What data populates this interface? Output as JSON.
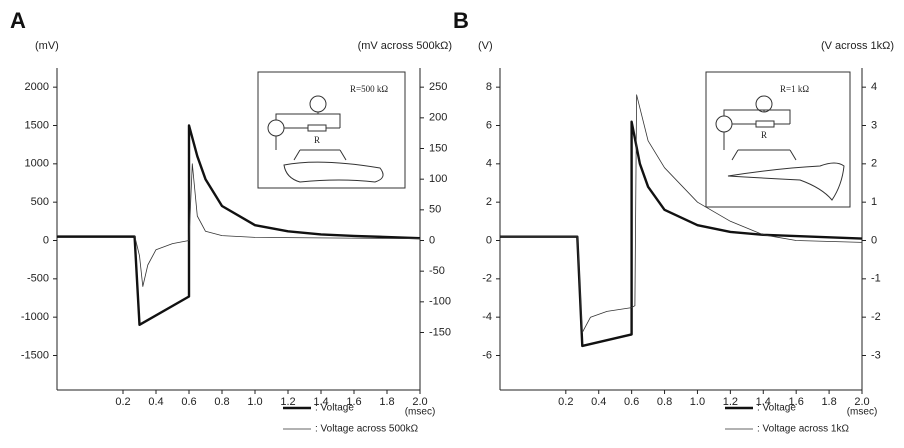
{
  "chart_data": [
    {
      "type": "line",
      "panel_label": "A",
      "y_label": "(mV)",
      "y2_label": "(mV across 500kΩ)",
      "x_label": "(msec)",
      "xlim": [
        -0.2,
        2.0
      ],
      "xticks": [
        0.2,
        0.4,
        0.6,
        0.8,
        {
          "value": 1,
          "label": "1.0"
        },
        1.2,
        1.4,
        1.6,
        1.8,
        {
          "value": 2,
          "label": "2.0"
        }
      ],
      "ylim": [
        -1950,
        2250
      ],
      "yticks": [
        2000,
        1500,
        1000,
        500,
        0,
        -500,
        -1000,
        -1500
      ],
      "y2lim": [
        -243.75,
        281.25
      ],
      "y2ticks": [
        250,
        200,
        150,
        100,
        50,
        0,
        -50,
        -100,
        -150
      ],
      "inset_labels": [
        "R=500 kΩ",
        "R"
      ],
      "series": [
        {
          "name": ": Voltage",
          "color": "#111111",
          "width": 2.4,
          "x": [
            -0.2,
            0.27,
            0.3,
            0.6,
            0.6,
            0.65,
            0.7,
            0.8,
            1.0,
            1.2,
            1.4,
            1.6,
            2.0
          ],
          "values": [
            50,
            50,
            -1100,
            -730,
            1500,
            1100,
            800,
            450,
            200,
            120,
            80,
            60,
            30
          ]
        },
        {
          "name": ": Voltage across 500kΩ",
          "color": "#333333",
          "width": 0.8,
          "axis": "y2",
          "x": [
            -0.2,
            0.27,
            0.3,
            0.32,
            0.35,
            0.4,
            0.5,
            0.6,
            0.62,
            0.65,
            0.7,
            0.8,
            1.0,
            2.0
          ],
          "values": [
            8,
            8,
            -25,
            -75,
            -40,
            -15,
            -5,
            0,
            125,
            40,
            15,
            8,
            5,
            3
          ]
        }
      ]
    },
    {
      "type": "line",
      "panel_label": "B",
      "y_label": "(V)",
      "y2_label": "(V across 1kΩ)",
      "x_label": "(msec)",
      "xlim": [
        -0.2,
        2.0
      ],
      "xticks": [
        0.2,
        0.4,
        0.6,
        0.8,
        {
          "value": 1,
          "label": "1.0"
        },
        1.2,
        1.4,
        1.6,
        1.8,
        {
          "value": 2,
          "label": "2.0"
        }
      ],
      "ylim": [
        -7.8,
        9
      ],
      "yticks": [
        8,
        6,
        4,
        2,
        0,
        -2,
        -4,
        -6
      ],
      "y2lim": [
        -3.9,
        4.5
      ],
      "y2ticks": [
        4,
        3,
        2,
        1,
        0,
        -1,
        -2,
        -3
      ],
      "inset_labels": [
        "R=1 kΩ",
        "R"
      ],
      "series": [
        {
          "name": ": Voltage",
          "color": "#111111",
          "width": 2.4,
          "x": [
            -0.2,
            0.27,
            0.3,
            0.6,
            0.6,
            0.65,
            0.7,
            0.8,
            1.0,
            1.2,
            1.4,
            2.0
          ],
          "values": [
            0.2,
            0.2,
            -5.5,
            -4.9,
            6.2,
            4,
            2.8,
            1.6,
            0.8,
            0.45,
            0.3,
            0.1
          ]
        },
        {
          "name": ": Voltage across 1kΩ",
          "color": "#333333",
          "width": 0.8,
          "axis": "y2",
          "x": [
            -0.2,
            0.27,
            0.3,
            0.35,
            0.45,
            0.6,
            0.62,
            0.63,
            0.7,
            0.8,
            1.0,
            1.2,
            1.4,
            1.6,
            2.0
          ],
          "values": [
            0.1,
            0.1,
            -2.4,
            -2.0,
            -1.85,
            -1.75,
            -1.7,
            3.8,
            2.6,
            1.9,
            1.0,
            0.5,
            0.15,
            0,
            -0.05
          ]
        }
      ]
    }
  ]
}
